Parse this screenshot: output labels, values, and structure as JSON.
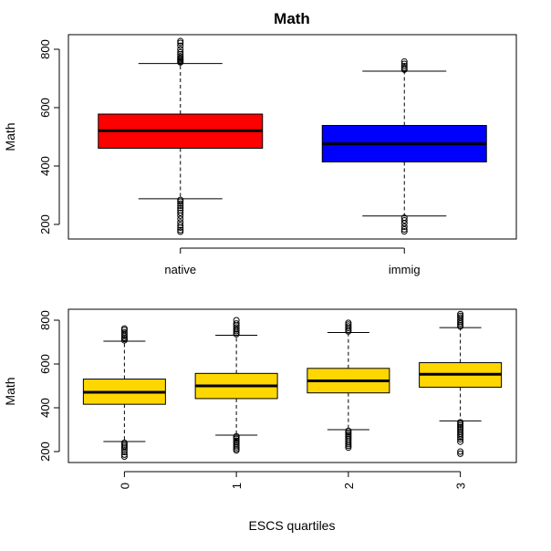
{
  "chart_data": [
    {
      "type": "boxplot",
      "title": "Math",
      "xlabel": "",
      "ylabel": "Math",
      "ylim": [
        150,
        850
      ],
      "yticks": [
        200,
        400,
        600,
        800
      ],
      "categories": [
        "native",
        "immig"
      ],
      "colors": [
        "#ff0000",
        "#0000ff"
      ],
      "boxes": [
        {
          "min": 288,
          "q1": 461,
          "median": 521,
          "q3": 578,
          "max": 751,
          "outliers_high": [
            755,
            758,
            762,
            766,
            770,
            776,
            783,
            790,
            800,
            812,
            822,
            828
          ],
          "outliers_low": [
            284,
            278,
            271,
            264,
            256,
            248,
            240,
            230,
            219,
            207,
            197,
            189,
            181,
            175
          ]
        },
        {
          "min": 229,
          "q1": 414,
          "median": 476,
          "q3": 539,
          "max": 725,
          "outliers_high": [
            730,
            736,
            742,
            750,
            758
          ],
          "outliers_low": [
            223,
            214,
            204,
            192,
            183,
            176
          ]
        }
      ]
    },
    {
      "type": "boxplot",
      "title": "",
      "xlabel": "ESCS quartiles",
      "ylabel": "Math",
      "ylim": [
        150,
        850
      ],
      "yticks": [
        200,
        400,
        600,
        800
      ],
      "categories": [
        "0",
        "1",
        "2",
        "3"
      ],
      "colors": [
        "#ffd700",
        "#ffd700",
        "#ffd700",
        "#ffd700"
      ],
      "boxes": [
        {
          "min": 246,
          "q1": 416,
          "median": 471,
          "q3": 531,
          "max": 704,
          "outliers_high": [
            708,
            714,
            720,
            728,
            736,
            745,
            755,
            762
          ],
          "outliers_low": [
            240,
            232,
            225,
            217,
            209,
            198,
            186,
            177
          ]
        },
        {
          "min": 275,
          "q1": 442,
          "median": 500,
          "q3": 557,
          "max": 731,
          "outliers_high": [
            736,
            742,
            750,
            758,
            767,
            776,
            785,
            800
          ],
          "outliers_low": [
            270,
            264,
            258,
            250,
            243,
            236,
            228,
            220,
            212,
            205
          ]
        },
        {
          "min": 300,
          "q1": 468,
          "median": 523,
          "q3": 580,
          "max": 744,
          "outliers_high": [
            749,
            756,
            764,
            772,
            780,
            788
          ],
          "outliers_low": [
            295,
            288,
            281,
            274,
            266,
            258,
            250,
            242,
            234,
            226,
            218
          ]
        },
        {
          "min": 340,
          "q1": 494,
          "median": 553,
          "q3": 606,
          "max": 766,
          "outliers_high": [
            771,
            778,
            786,
            794,
            802,
            812,
            820,
            828
          ],
          "outliers_low": [
            334,
            327,
            320,
            312,
            305,
            298,
            290,
            282,
            274,
            265,
            256,
            245,
            200,
            190
          ]
        }
      ]
    }
  ]
}
